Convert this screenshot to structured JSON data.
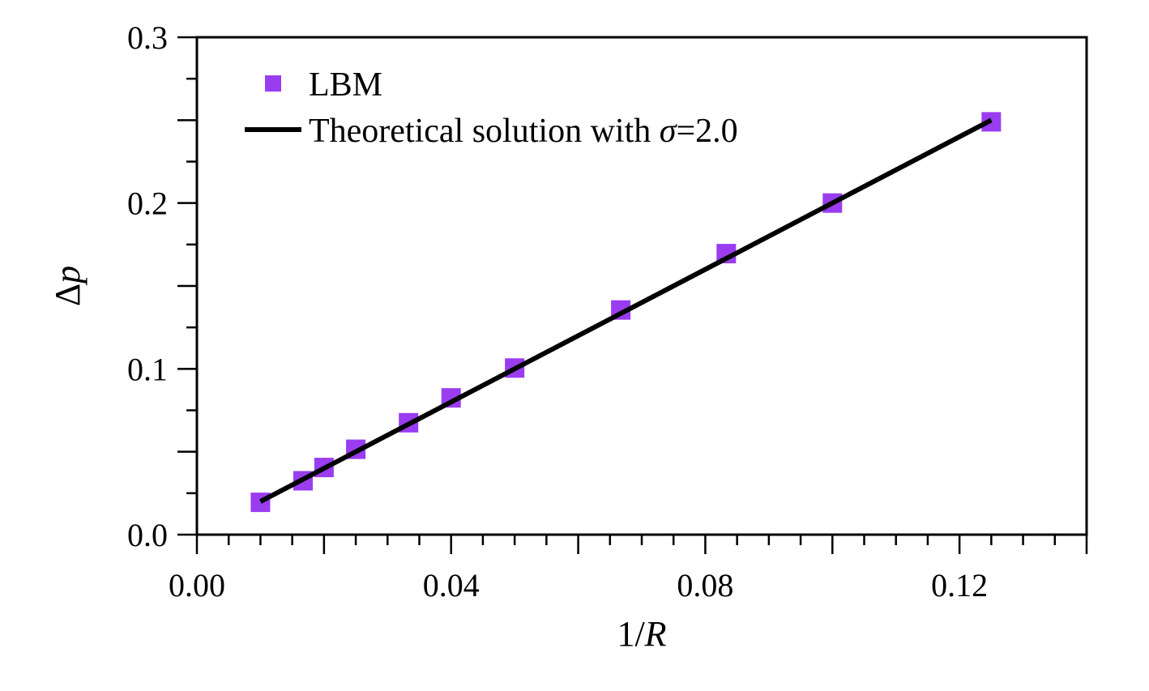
{
  "chart_data": {
    "type": "scatter",
    "xlabel": {
      "prefix": "1/",
      "symbol": "R"
    },
    "ylabel": {
      "prefix": "Δ",
      "symbol": "p"
    },
    "xlim": [
      0,
      0.14
    ],
    "ylim": [
      0,
      0.3
    ],
    "x_ticks": [
      0.0,
      0.04,
      0.08,
      0.12
    ],
    "x_tick_labels": [
      "0.00",
      "0.04",
      "0.08",
      "0.12"
    ],
    "y_ticks": [
      0.0,
      0.1,
      0.2,
      0.3
    ],
    "y_tick_labels": [
      "0.0",
      "0.1",
      "0.2",
      "0.3"
    ],
    "grid": false,
    "legend_position": "top-left",
    "series": [
      {
        "name": "LBM",
        "kind": "scatter",
        "marker": "square",
        "color": "#9a3df0",
        "x": [
          0.01,
          0.0167,
          0.02,
          0.025,
          0.0333,
          0.04,
          0.05,
          0.0667,
          0.0833,
          0.1,
          0.125
        ],
        "y": [
          0.0195,
          0.0325,
          0.0405,
          0.0515,
          0.0675,
          0.0825,
          0.1005,
          0.1355,
          0.1695,
          0.2,
          0.249
        ]
      },
      {
        "name": {
          "prefix": "Theoretical solution with ",
          "symbol": "σ",
          "suffix": "=2.0"
        },
        "kind": "line",
        "color": "#000000",
        "x": [
          0.01,
          0.125
        ],
        "y": [
          0.02,
          0.25
        ]
      }
    ]
  }
}
